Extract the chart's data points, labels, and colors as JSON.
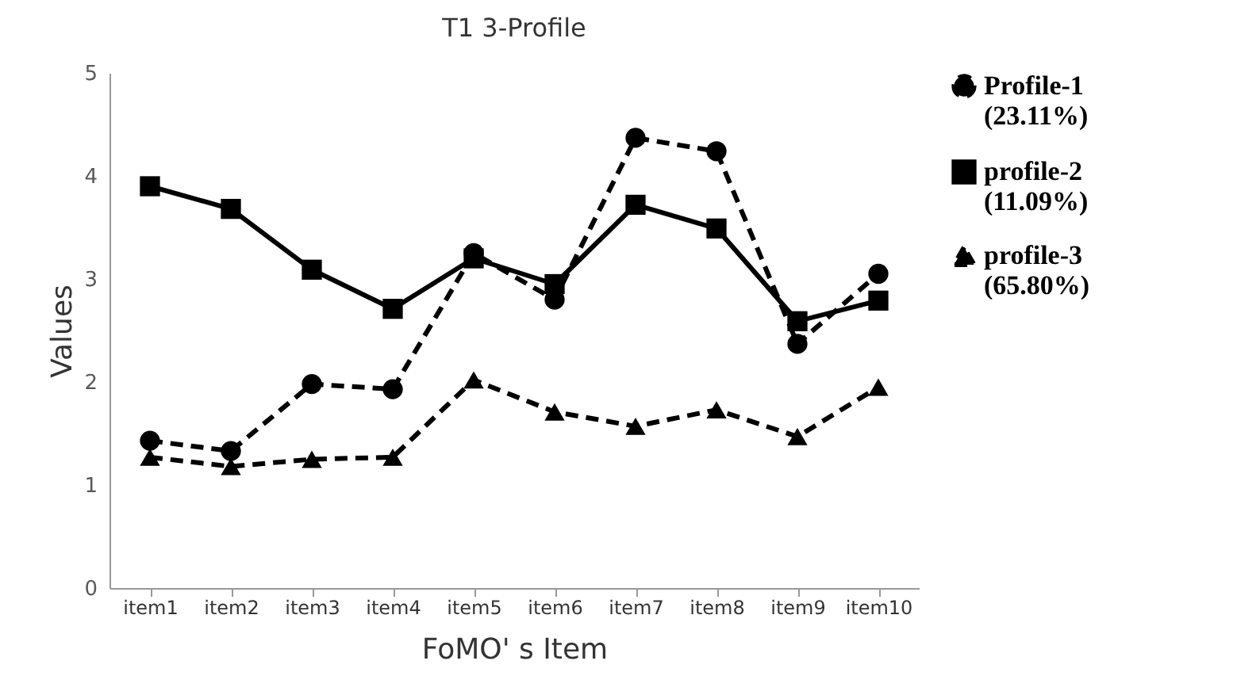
{
  "chart_data": {
    "type": "line",
    "title": "T1 3-Profile",
    "xlabel": "FoMO' s Item",
    "ylabel": "Values",
    "categories": [
      "item1",
      "item2",
      "item3",
      "item4",
      "item5",
      "item6",
      "item7",
      "item8",
      "item9",
      "item10"
    ],
    "series": [
      {
        "name": "Profile-1 (23.11%)",
        "color": "#000000",
        "marker": "circle",
        "line_style": "dashed",
        "values": [
          1.43,
          1.33,
          1.98,
          1.93,
          3.25,
          2.8,
          4.37,
          4.24,
          2.37,
          3.05
        ]
      },
      {
        "name": "profile-2 (11.09%)",
        "color": "#000000",
        "marker": "square",
        "line_style": "solid",
        "values": [
          3.9,
          3.68,
          3.09,
          2.71,
          3.2,
          2.95,
          3.72,
          3.49,
          2.59,
          2.79
        ]
      },
      {
        "name": "profile-3 (65.80%)",
        "color": "#000000",
        "marker": "triangle",
        "line_style": "dashed",
        "values": [
          1.27,
          1.18,
          1.25,
          1.27,
          2.02,
          1.71,
          1.57,
          1.73,
          1.47,
          1.95
        ]
      }
    ],
    "ylim": [
      0,
      5
    ],
    "yticks": [
      0,
      1,
      2,
      3,
      4,
      5
    ],
    "grid": false,
    "legend": "top right"
  }
}
